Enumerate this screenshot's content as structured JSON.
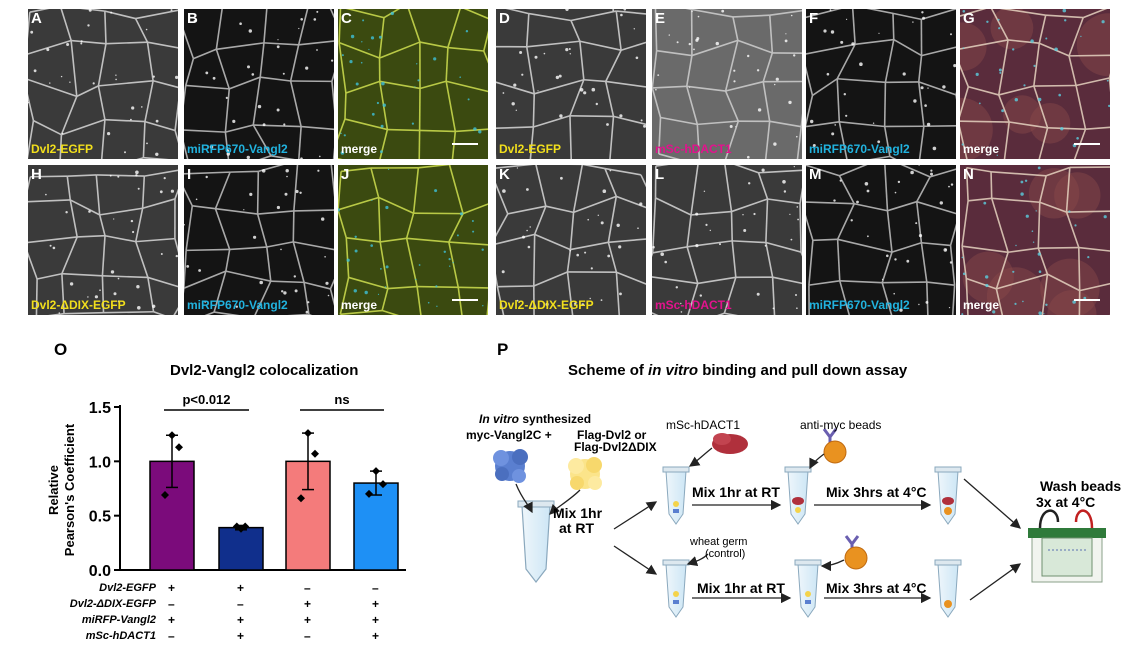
{
  "panels_row1": [
    {
      "letter": "A",
      "caption": "Dvl2-EGFP",
      "caption_color": "#f2df1c",
      "style": "gray"
    },
    {
      "letter": "B",
      "caption": "miRFP670-Vangl2",
      "caption_color": "#21b3df",
      "style": "gray-dark"
    },
    {
      "letter": "C",
      "caption": "merge",
      "caption_color": "#ffffff",
      "style": "green",
      "scale_bar": true
    },
    {
      "letter": "D",
      "caption": "Dvl2-EGFP",
      "caption_color": "#f2df1c",
      "style": "gray"
    },
    {
      "letter": "E",
      "caption": "mSc-hDACT1",
      "caption_color": "#e3128d",
      "style": "gray-bright"
    },
    {
      "letter": "F",
      "caption": "miRFP670-Vangl2",
      "caption_color": "#21b3df",
      "style": "gray-dark"
    },
    {
      "letter": "G",
      "caption": "merge",
      "caption_color": "#ffffff",
      "style": "rgb",
      "scale_bar": true
    }
  ],
  "panels_row2": [
    {
      "letter": "H",
      "caption": "Dvl2-ΔDIX-EGFP",
      "caption_color": "#f2df1c",
      "style": "gray"
    },
    {
      "letter": "I",
      "caption": "miRFP670-Vangl2",
      "caption_color": "#21b3df",
      "style": "gray-dark"
    },
    {
      "letter": "J",
      "caption": "merge",
      "caption_color": "#ffffff",
      "style": "green",
      "scale_bar": true
    },
    {
      "letter": "K",
      "caption": "Dvl2-ΔDIX-EGFP",
      "caption_color": "#f2df1c",
      "style": "gray"
    },
    {
      "letter": "L",
      "caption": "mSc-hDACT1",
      "caption_color": "#e3128d",
      "style": "gray"
    },
    {
      "letter": "M",
      "caption": "miRFP670-Vangl2",
      "caption_color": "#21b3df",
      "style": "gray-dark"
    },
    {
      "letter": "N",
      "caption": "merge",
      "caption_color": "#ffffff",
      "style": "rgb",
      "scale_bar": true
    }
  ],
  "panel_o": {
    "letter": "O",
    "title": "Dvl2-Vangl2 colocalization",
    "significance": [
      {
        "label": "p<0.012",
        "between": [
          0,
          1
        ]
      },
      {
        "label": "ns",
        "between": [
          2,
          3
        ]
      }
    ],
    "condition_labels": [
      "Dvl2-EGFP",
      "Dvl2-ΔDIX-EGFP",
      "miRFP-Vangl2",
      "mSc-hDACT1"
    ],
    "condition_signs": [
      [
        "+",
        "+",
        "–",
        "–"
      ],
      [
        "–",
        "–",
        "+",
        "+"
      ],
      [
        "+",
        "+",
        "+",
        "+"
      ],
      [
        "–",
        "+",
        "–",
        "+"
      ]
    ]
  },
  "chart_data": {
    "type": "bar",
    "ylabel": "Relative Pearson's Coefficient",
    "ylim": [
      0,
      1.5
    ],
    "yticks": [
      "0.0",
      "0.5",
      "1.0",
      "1.5"
    ],
    "series": [
      {
        "values": [
          1.0,
          0.39,
          1.0,
          0.8
        ],
        "errors": [
          0.24,
          0.02,
          0.26,
          0.11
        ]
      }
    ],
    "colors": [
      "#7b0b7b",
      "#102f8c",
      "#f47b7b",
      "#1e90f5"
    ],
    "points": [
      [
        1.24,
        1.13,
        0.69
      ],
      [
        0.38,
        0.4,
        0.4
      ],
      [
        1.26,
        1.07,
        0.66
      ],
      [
        0.91,
        0.79,
        0.7
      ]
    ]
  },
  "panel_p": {
    "letter": "P",
    "title_pre": "Scheme of ",
    "title_ital": "in vitro",
    "title_post": " binding and pull down assay",
    "synth_ital": "In vitro",
    "synth_rest": " synthesized",
    "myc_label": "myc-Vangl2C +",
    "flag_line1": "Flag-Dvl2 or",
    "flag_line2": "Flag-Dvl2ΔDIX",
    "mix1_line1": "Mix 1hr",
    "mix1_line2": "at RT",
    "dact_label": "mSc-hDACT1",
    "beads_label": "anti-myc beads",
    "wheat_line1": "wheat germ",
    "wheat_line2": "(control)",
    "mix_rt_top": "Mix 1hr at RT",
    "mix_4c_top": "Mix 3hrs at 4°C",
    "mix_rt_bottom": "Mix 1hr at RT",
    "mix_4c_bottom": "Mix 3hrs at 4°C",
    "wash_line1": "Wash beads",
    "wash_line2": "3x at 4°C"
  }
}
